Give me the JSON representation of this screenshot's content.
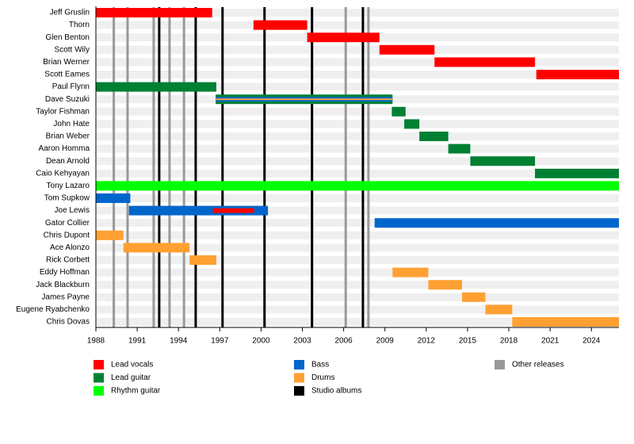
{
  "chart_data": {
    "type": "timeline",
    "roles": [
      {
        "name": "Lead vocals",
        "color": "#ff0000"
      },
      {
        "name": "Lead guitar",
        "color": "#008033"
      },
      {
        "name": "Rhythm guitar",
        "color": "#00ff00"
      },
      {
        "name": "Bass",
        "color": "#0066cc"
      },
      {
        "name": "Drums",
        "color": "#ffa033"
      }
    ],
    "events": [
      {
        "name": "Studio albums",
        "color": "#000000",
        "x": [
          1992.6,
          1995.25,
          1997.2,
          2000.25,
          2003.7,
          2007.4
        ]
      },
      {
        "name": "Other releases",
        "color": "#999999",
        "x": [
          1989.3,
          1990.3,
          1992.2,
          1993.35,
          1994.4,
          2006.15,
          2007.8
        ]
      }
    ],
    "members": [
      {
        "name": "Jeff Gruslin",
        "periods": [
          {
            "role": "Lead vocals",
            "start": 1988,
            "end": 1996.45
          }
        ]
      },
      {
        "name": "Thorn",
        "periods": [
          {
            "role": "Lead vocals",
            "start": 1999.45,
            "end": 2003.35
          }
        ]
      },
      {
        "name": "Glen Benton",
        "periods": [
          {
            "role": "Lead vocals",
            "start": 2003.35,
            "end": 2008.6
          }
        ]
      },
      {
        "name": "Scott Wily",
        "periods": [
          {
            "role": "Lead vocals",
            "start": 2008.6,
            "end": 2012.6
          }
        ]
      },
      {
        "name": "Brian Werner",
        "periods": [
          {
            "role": "Lead vocals",
            "start": 2012.6,
            "end": 2019.9
          }
        ]
      },
      {
        "name": "Scott Eames",
        "periods": [
          {
            "role": "Lead vocals",
            "start": 2020.0,
            "end": 2026
          }
        ]
      },
      {
        "name": "Paul Flynn",
        "periods": [
          {
            "role": "Lead guitar",
            "start": 1988,
            "end": 1996.75
          }
        ]
      },
      {
        "name": "Dave Suzuki",
        "periods": [
          {
            "role": "Lead guitar",
            "start": 1996.7,
            "end": 2009.55
          },
          {
            "role": "Bass",
            "start": 1996.7,
            "end": 2009.55
          },
          {
            "role": "Drums",
            "start": 1996.7,
            "end": 2009.55
          }
        ]
      },
      {
        "name": "Taylor Fishman",
        "periods": [
          {
            "role": "Lead guitar",
            "start": 2009.5,
            "end": 2010.5
          }
        ]
      },
      {
        "name": "John Hate",
        "periods": [
          {
            "role": "Lead guitar",
            "start": 2010.4,
            "end": 2011.5
          }
        ]
      },
      {
        "name": "Brian Weber",
        "periods": [
          {
            "role": "Lead guitar",
            "start": 2011.5,
            "end": 2013.6
          }
        ]
      },
      {
        "name": "Aaron Homma",
        "periods": [
          {
            "role": "Lead guitar",
            "start": 2013.6,
            "end": 2015.2
          }
        ]
      },
      {
        "name": "Dean Arnold",
        "periods": [
          {
            "role": "Lead guitar",
            "start": 2015.2,
            "end": 2019.9
          }
        ]
      },
      {
        "name": "Caio Kehyayan",
        "periods": [
          {
            "role": "Lead guitar",
            "start": 2019.9,
            "end": 2026
          }
        ]
      },
      {
        "name": "Tony Lazaro",
        "periods": [
          {
            "role": "Rhythm guitar",
            "start": 1988,
            "end": 2026
          }
        ]
      },
      {
        "name": "Tom Supkow",
        "periods": [
          {
            "role": "Bass",
            "start": 1988,
            "end": 1990.5
          }
        ]
      },
      {
        "name": "Joe Lewis",
        "periods": [
          {
            "role": "Bass",
            "start": 1990.4,
            "end": 2000.5
          },
          {
            "role": "Lead vocals",
            "start": 1996.5,
            "end": 1999.5
          }
        ]
      },
      {
        "name": "Gator Collier",
        "periods": [
          {
            "role": "Bass",
            "start": 2008.25,
            "end": 2026
          }
        ]
      },
      {
        "name": "Chris Dupont",
        "periods": [
          {
            "role": "Drums",
            "start": 1988,
            "end": 1990
          }
        ]
      },
      {
        "name": "Ace Alonzo",
        "periods": [
          {
            "role": "Drums",
            "start": 1990,
            "end": 1994.8
          }
        ]
      },
      {
        "name": "Rick Corbett",
        "periods": [
          {
            "role": "Drums",
            "start": 1994.8,
            "end": 1996.75
          }
        ]
      },
      {
        "name": "Eddy Hoffman",
        "periods": [
          {
            "role": "Drums",
            "start": 2009.55,
            "end": 2012.15
          }
        ]
      },
      {
        "name": "Jack Blackburn",
        "periods": [
          {
            "role": "Drums",
            "start": 2012.15,
            "end": 2014.6
          }
        ]
      },
      {
        "name": "James Payne",
        "periods": [
          {
            "role": "Drums",
            "start": 2014.6,
            "end": 2016.3
          }
        ]
      },
      {
        "name": "Eugene Ryabchenko",
        "periods": [
          {
            "role": "Drums",
            "start": 2016.3,
            "end": 2018.25
          }
        ]
      },
      {
        "name": "Chris Dovas",
        "periods": [
          {
            "role": "Drums",
            "start": 2018.25,
            "end": 2026
          }
        ]
      }
    ],
    "xlim": [
      1988,
      2026
    ],
    "xticks": [
      1988,
      1991,
      1994,
      1997,
      2000,
      2003,
      2006,
      2009,
      2012,
      2015,
      2018,
      2021,
      2024
    ]
  }
}
